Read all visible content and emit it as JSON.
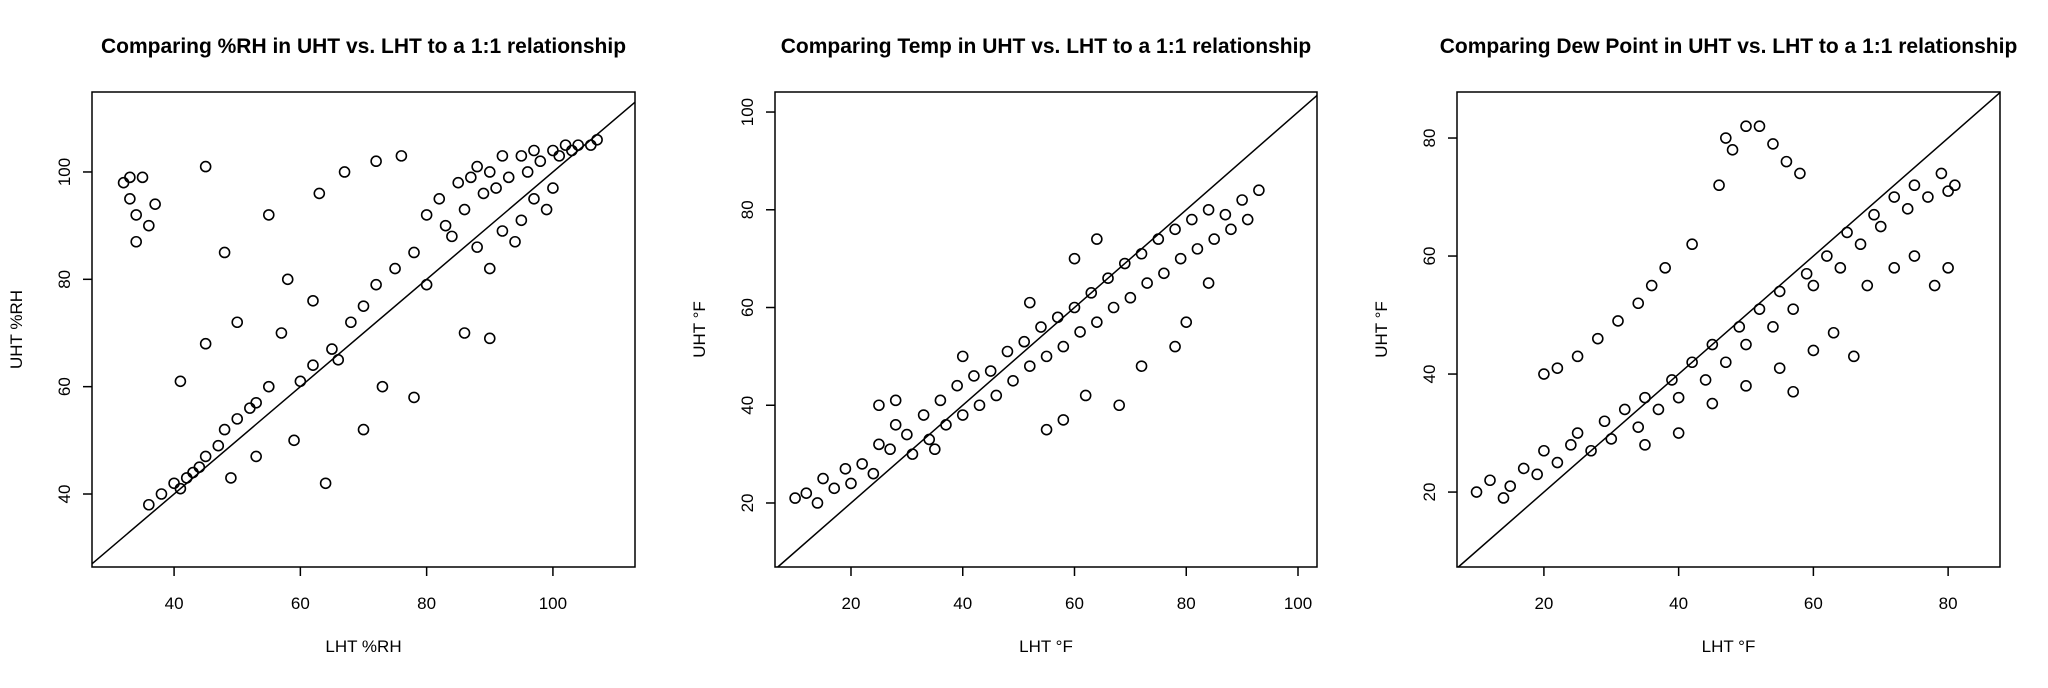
{
  "chart_data": [
    {
      "type": "scatter",
      "title": "Comparing %RH in UHT vs. LHT to a 1:1 relationship",
      "xlabel": "LHT %RH",
      "ylabel": "UHT %RH",
      "xlim": [
        27,
        113
      ],
      "ylim": [
        26.4,
        114.9
      ],
      "xticks": [
        40,
        60,
        80,
        100
      ],
      "yticks": [
        40,
        60,
        80,
        100
      ],
      "identity_line": true,
      "color": "#000000",
      "x": [
        32,
        33,
        34,
        35,
        36,
        34,
        37,
        33,
        40,
        41,
        42,
        43,
        45,
        47,
        50,
        52,
        53,
        55,
        38,
        44,
        36,
        48,
        60,
        62,
        65,
        68,
        70,
        72,
        75,
        78,
        80,
        82,
        85,
        87,
        88,
        90,
        92,
        95,
        97,
        100,
        102,
        104,
        106,
        107,
        83,
        86,
        89,
        91,
        93,
        96,
        98,
        101,
        103,
        84,
        88,
        92,
        95,
        99,
        100,
        97,
        90,
        94,
        48,
        55,
        58,
        63,
        67,
        72,
        76,
        45,
        45,
        50,
        57,
        62,
        66,
        73,
        78,
        86,
        90,
        80,
        41,
        59,
        64,
        49,
        53,
        70
      ],
      "y": [
        98,
        95,
        92,
        99,
        90,
        87,
        94,
        99,
        42,
        41,
        43,
        44,
        47,
        49,
        54,
        56,
        57,
        60,
        40,
        45,
        38,
        52,
        61,
        64,
        67,
        72,
        75,
        79,
        82,
        85,
        92,
        95,
        98,
        99,
        101,
        100,
        103,
        103,
        104,
        104,
        105,
        105,
        105,
        106,
        90,
        93,
        96,
        97,
        99,
        100,
        102,
        103,
        104,
        88,
        86,
        89,
        91,
        93,
        97,
        95,
        82,
        87,
        85,
        92,
        80,
        96,
        100,
        102,
        103,
        101,
        68,
        72,
        70,
        76,
        65,
        60,
        58,
        70,
        69,
        79,
        61,
        50,
        42,
        43,
        47,
        52
      ]
    },
    {
      "type": "scatter",
      "title": "Comparing Temp in UHT vs. LHT to a 1:1 relationship",
      "xlabel": "LHT °F",
      "ylabel": "UHT °F",
      "xlim": [
        6.4,
        103.4
      ],
      "ylim": [
        6.9,
        104.1
      ],
      "xticks": [
        20,
        40,
        60,
        80,
        100
      ],
      "yticks": [
        20,
        40,
        60,
        80,
        100
      ],
      "identity_line": true,
      "color": "#000000",
      "x": [
        10,
        12,
        14,
        15,
        17,
        19,
        20,
        22,
        24,
        25,
        27,
        28,
        30,
        31,
        33,
        34,
        36,
        37,
        39,
        40,
        42,
        43,
        45,
        46,
        48,
        49,
        51,
        52,
        54,
        55,
        57,
        58,
        60,
        61,
        63,
        64,
        66,
        67,
        69,
        70,
        72,
        73,
        75,
        76,
        78,
        79,
        81,
        82,
        84,
        85,
        87,
        88,
        90,
        91,
        93,
        25,
        28,
        40,
        52,
        60,
        64,
        35,
        55,
        58,
        62,
        68,
        72,
        78,
        80,
        84
      ],
      "y": [
        21,
        22,
        20,
        25,
        23,
        27,
        24,
        28,
        26,
        32,
        31,
        36,
        34,
        30,
        38,
        33,
        41,
        36,
        44,
        38,
        46,
        40,
        47,
        42,
        51,
        45,
        53,
        48,
        56,
        50,
        58,
        52,
        60,
        55,
        63,
        57,
        66,
        60,
        69,
        62,
        71,
        65,
        74,
        67,
        76,
        70,
        78,
        72,
        80,
        74,
        79,
        76,
        82,
        78,
        84,
        40,
        41,
        50,
        61,
        70,
        74,
        31,
        35,
        37,
        42,
        40,
        48,
        52,
        57,
        65
      ]
    },
    {
      "type": "scatter",
      "title": "Comparing Dew Point in UHT vs. LHT to a 1:1 relationship",
      "xlabel": "LHT °F",
      "ylabel": "UHT °F",
      "xlim": [
        7.1,
        87.7
      ],
      "ylim": [
        7.3,
        87.8
      ],
      "xticks": [
        20,
        40,
        60,
        80
      ],
      "yticks": [
        20,
        40,
        60,
        80
      ],
      "identity_line": true,
      "color": "#000000",
      "x": [
        10,
        12,
        14,
        15,
        17,
        19,
        20,
        22,
        24,
        25,
        27,
        29,
        30,
        32,
        34,
        35,
        37,
        39,
        40,
        42,
        44,
        45,
        47,
        49,
        50,
        52,
        54,
        55,
        57,
        59,
        60,
        62,
        64,
        65,
        67,
        69,
        70,
        72,
        74,
        75,
        77,
        79,
        80,
        81,
        20,
        22,
        25,
        28,
        31,
        34,
        36,
        38,
        42,
        46,
        47,
        48,
        50,
        52,
        54,
        56,
        58,
        45,
        50,
        55,
        57,
        60,
        63,
        66,
        68,
        72,
        75,
        78,
        80,
        40,
        35
      ],
      "y": [
        20,
        22,
        19,
        21,
        24,
        23,
        27,
        25,
        28,
        30,
        27,
        32,
        29,
        34,
        31,
        36,
        34,
        39,
        36,
        42,
        39,
        45,
        42,
        48,
        45,
        51,
        48,
        54,
        51,
        57,
        55,
        60,
        58,
        64,
        62,
        67,
        65,
        70,
        68,
        72,
        70,
        74,
        71,
        72,
        40,
        41,
        43,
        46,
        49,
        52,
        55,
        58,
        62,
        72,
        80,
        78,
        82,
        82,
        79,
        76,
        74,
        35,
        38,
        41,
        37,
        44,
        47,
        43,
        55,
        58,
        60,
        55,
        58,
        30,
        28
      ]
    }
  ]
}
